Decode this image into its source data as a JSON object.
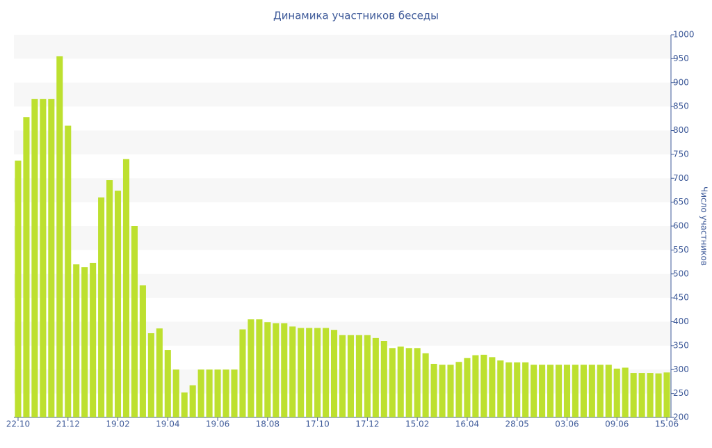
{
  "chart_data": {
    "type": "bar",
    "title": "Динамика участников беседы",
    "y_label": "Число участников",
    "categories": [
      "22.10",
      null,
      null,
      null,
      null,
      null,
      "21.12",
      null,
      null,
      null,
      null,
      null,
      "19.02",
      null,
      null,
      null,
      null,
      null,
      "19.04",
      null,
      null,
      null,
      null,
      null,
      "19.06",
      null,
      null,
      null,
      null,
      null,
      "18.08",
      null,
      null,
      null,
      null,
      null,
      "17.10",
      null,
      null,
      null,
      null,
      null,
      "17.12",
      null,
      null,
      null,
      null,
      null,
      "15.02",
      null,
      null,
      null,
      null,
      null,
      "16.04",
      null,
      null,
      null,
      null,
      null,
      "28.05",
      null,
      null,
      null,
      null,
      null,
      "03.06",
      null,
      null,
      null,
      null,
      null,
      "09.06",
      null,
      null,
      null,
      null,
      null,
      "15.06"
    ],
    "values": [
      737,
      828,
      866,
      866,
      866,
      955,
      810,
      520,
      514,
      523,
      660,
      696,
      674,
      740,
      600,
      476,
      376,
      386,
      341,
      300,
      252,
      267,
      300,
      300,
      300,
      300,
      300,
      384,
      405,
      405,
      399,
      397,
      397,
      390,
      387,
      387,
      387,
      387,
      383,
      372,
      372,
      372,
      372,
      366,
      360,
      345,
      348,
      345,
      345,
      334,
      312,
      310,
      310,
      316,
      324,
      330,
      331,
      326,
      319,
      315,
      315,
      315,
      310,
      310,
      310,
      310,
      310,
      310,
      310,
      310,
      310,
      310,
      302,
      304,
      293,
      293,
      293,
      292,
      294
    ],
    "color": "#bde02f",
    "ylim": [
      200,
      1000
    ],
    "yticks": [
      200,
      250,
      300,
      350,
      400,
      450,
      500,
      550,
      600,
      650,
      700,
      750,
      800,
      850,
      900,
      950,
      1000
    ],
    "grid": true
  }
}
